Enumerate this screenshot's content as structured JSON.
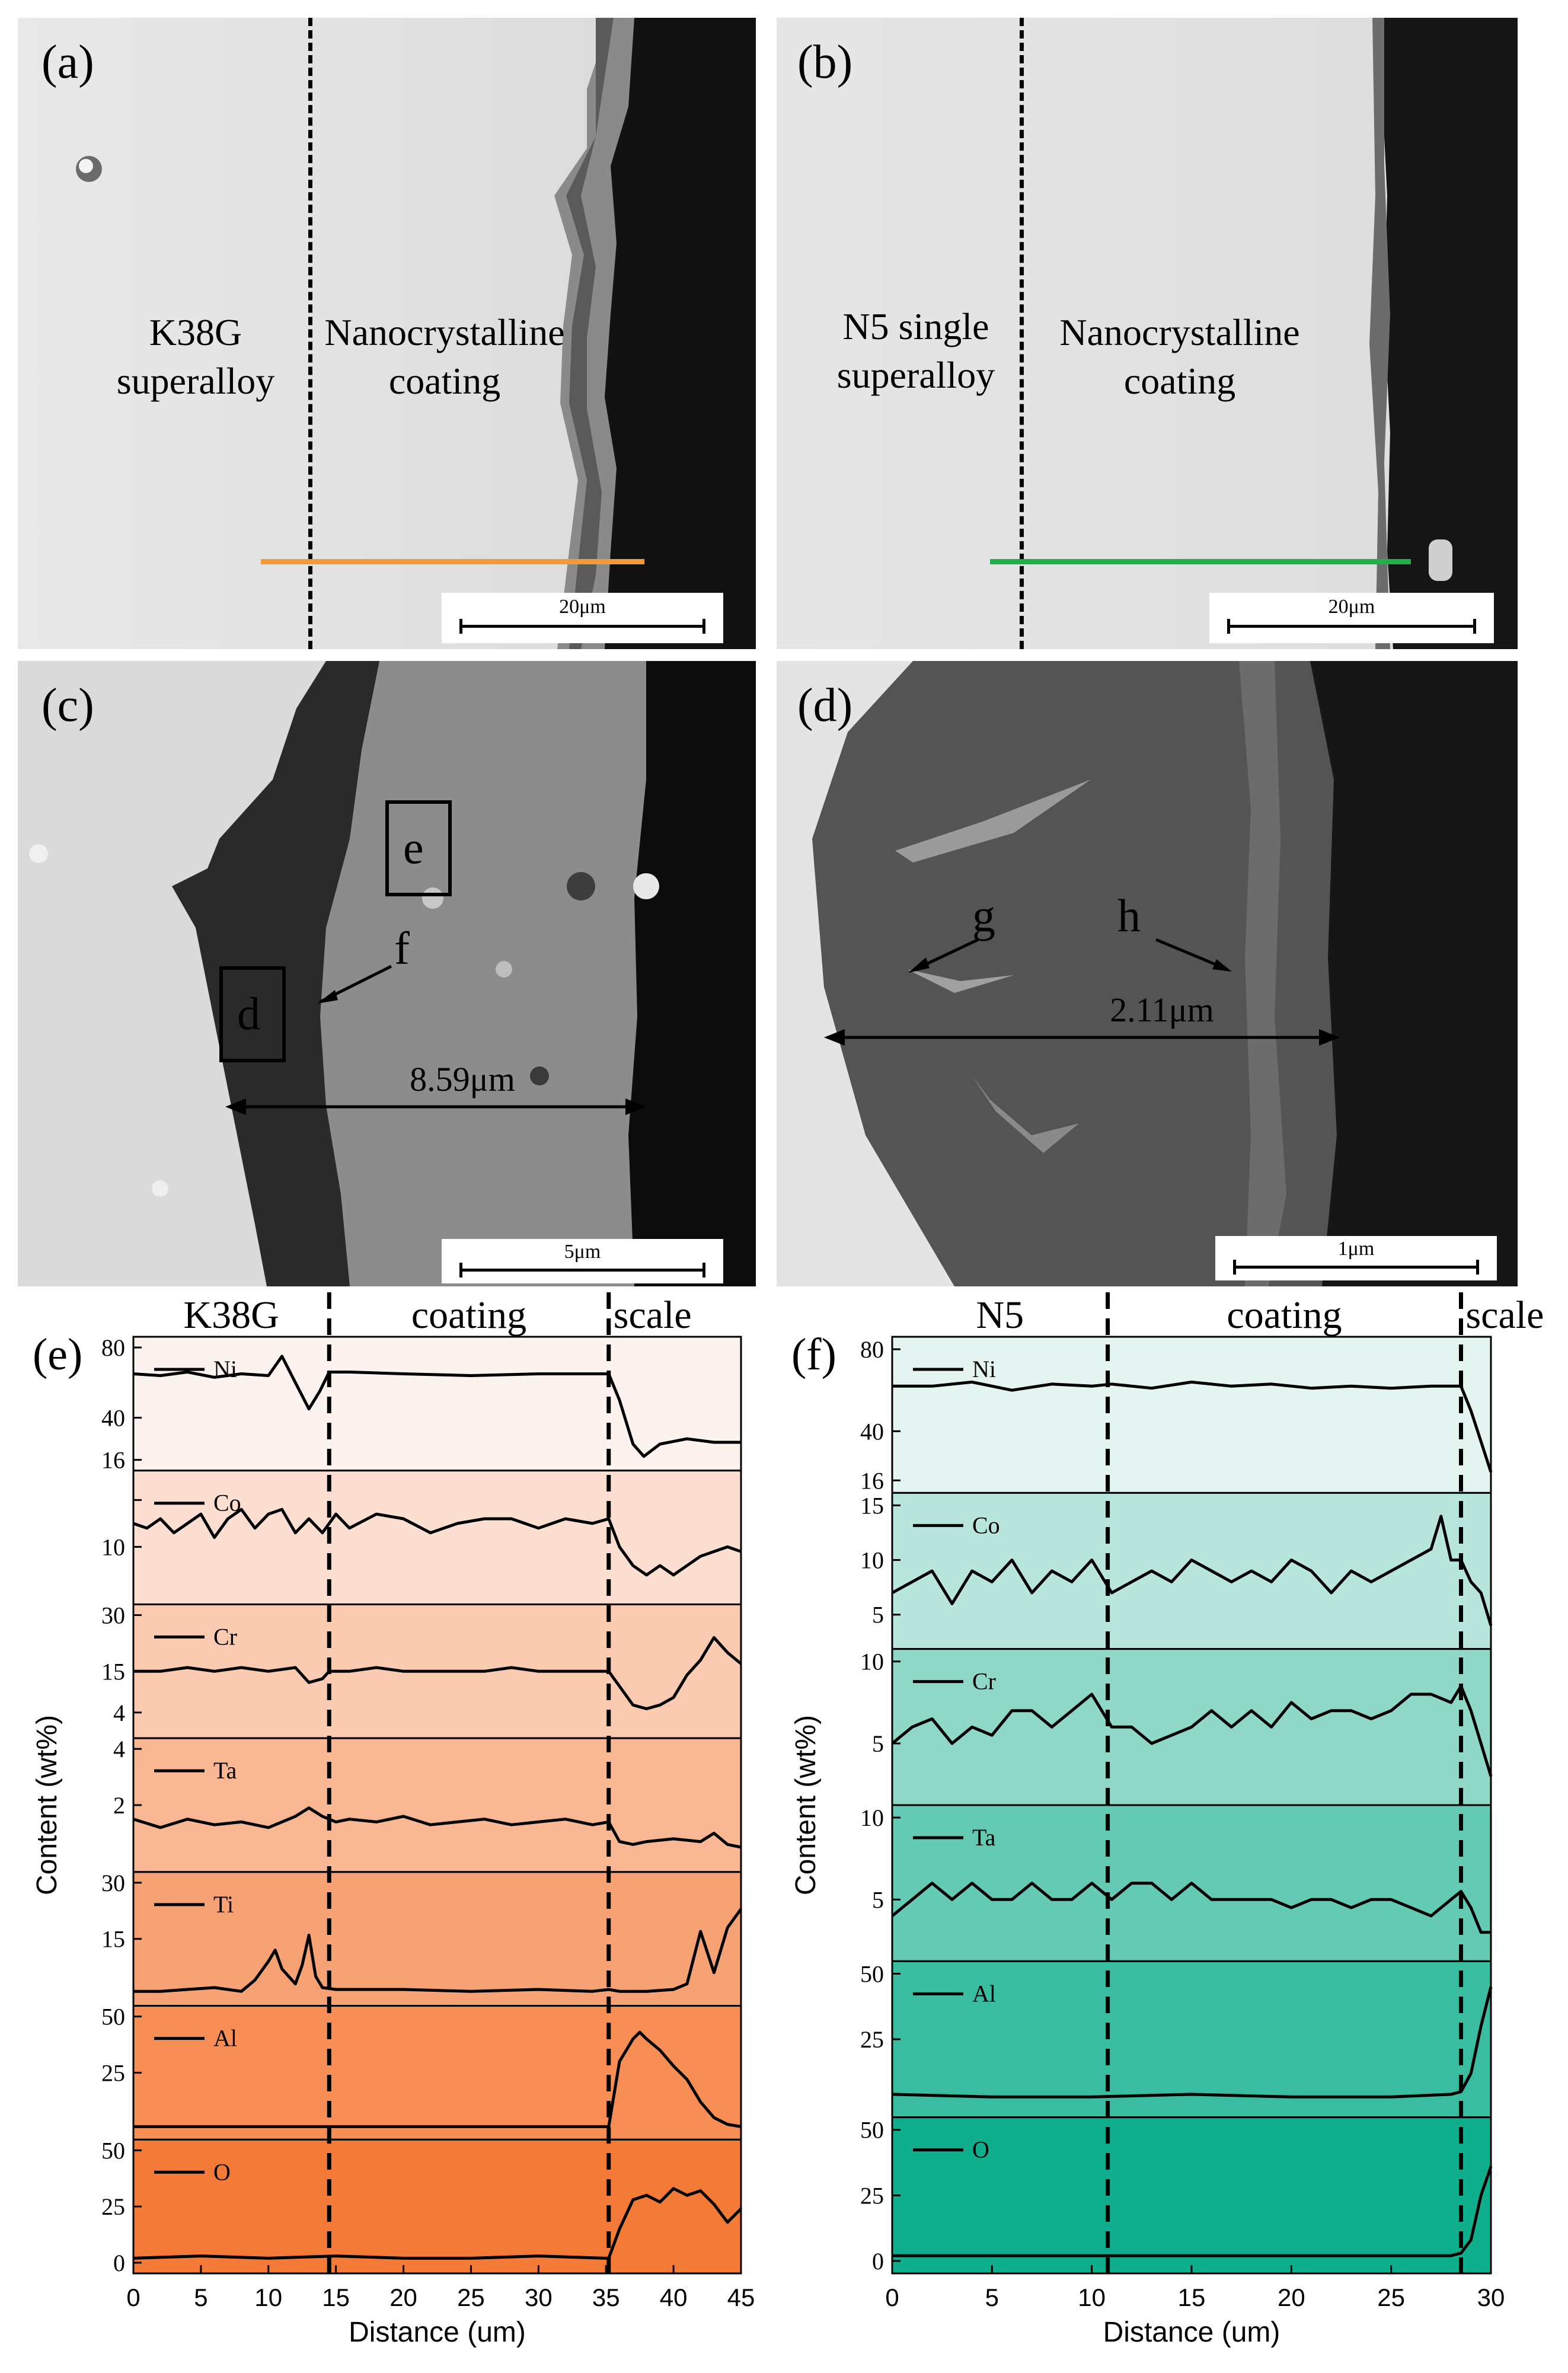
{
  "panel_a": {
    "label": "(a)",
    "left_region": [
      "K38G",
      "superalloy"
    ],
    "right_region": [
      "Nanocrystalline",
      "coating"
    ],
    "scale": "20μm"
  },
  "panel_b": {
    "label": "(b)",
    "left_region": [
      "N5 single",
      "superalloy"
    ],
    "right_region": [
      "Nanocrystalline",
      "coating"
    ],
    "scale": "20μm"
  },
  "panel_c": {
    "label": "(c)",
    "box_d": "d",
    "box_e": "e",
    "arrow_f": "f",
    "measure": "8.59μm",
    "scale": "5μm"
  },
  "panel_d": {
    "label": "(d)",
    "arrow_g": "g",
    "arrow_h": "h",
    "measure": "2.11μm",
    "scale": "1μm"
  },
  "colors": {
    "line_a": "#f39a3a",
    "line_b": "#1fae4a",
    "k38g_strip_top": "#fdf3ee",
    "k38g_strip_bottom": "#f47a38",
    "n5_strip_top": "#e4f4f0",
    "n5_strip_bottom": "#0fae8c"
  },
  "chart_data": [
    {
      "type": "line",
      "panel_label": "(e)",
      "region_labels": [
        "K38G",
        "coating",
        "scale"
      ],
      "boundaries_x": [
        14.5,
        35.2
      ],
      "xlabel": "Distance (um)",
      "ylabel": "Content (wt%)",
      "xlim": [
        0,
        45
      ],
      "xticks": [
        0,
        5,
        10,
        15,
        20,
        25,
        30,
        35,
        40,
        45
      ],
      "series": [
        {
          "name": "Ni",
          "ylim": [
            16,
            80
          ],
          "ytick_labels": [
            "80",
            "40",
            "16"
          ],
          "yticks": [
            80,
            40,
            16
          ],
          "x": [
            0,
            2,
            4,
            6,
            8,
            10,
            11,
            12,
            13,
            13.8,
            14.5,
            16,
            20,
            25,
            30,
            34,
            35.2,
            36,
            37,
            37.8,
            39,
            41,
            43,
            45
          ],
          "y": [
            65,
            64,
            66,
            63,
            65,
            64,
            75,
            60,
            45,
            55,
            66,
            66,
            65,
            64,
            65,
            65,
            65,
            50,
            25,
            18,
            25,
            28,
            26,
            26
          ]
        },
        {
          "name": "Co",
          "ylim": [
            0,
            12
          ],
          "ytick_labels": [
            "",
            "10",
            "5"
          ],
          "yticks": [
            10,
            5
          ],
          "x": [
            0,
            1,
            2,
            3,
            4,
            5,
            6,
            7,
            8,
            9,
            10,
            11,
            12,
            13,
            14,
            15,
            16,
            18,
            20,
            22,
            24,
            26,
            28,
            30,
            32,
            34,
            35.2,
            36,
            37,
            38,
            39,
            40,
            42,
            44,
            45
          ],
          "y": [
            7.5,
            7,
            8,
            6.5,
            7.5,
            8.5,
            6,
            8,
            9,
            7,
            8.5,
            9,
            6.5,
            8,
            6.5,
            8.5,
            7,
            8.5,
            8,
            6.5,
            7.5,
            8,
            8,
            7,
            8,
            7.5,
            8,
            5,
            3,
            2,
            3,
            2,
            4,
            5,
            4.5
          ]
        },
        {
          "name": "Cr",
          "ylim": [
            0,
            30
          ],
          "ytick_labels": [
            "30",
            "15",
            "4"
          ],
          "yticks": [
            30,
            15,
            4
          ],
          "x": [
            0,
            2,
            4,
            6,
            8,
            10,
            12,
            13,
            14,
            14.5,
            16,
            18,
            20,
            22,
            24,
            26,
            28,
            30,
            32,
            34,
            35.2,
            36,
            37,
            38,
            39,
            40,
            41,
            42,
            43,
            44,
            45
          ],
          "y": [
            15,
            15,
            16,
            15,
            16,
            15,
            16,
            12,
            13,
            15,
            15,
            16,
            15,
            15,
            15,
            15,
            16,
            15,
            15,
            15,
            15,
            11,
            6,
            5,
            6,
            8,
            14,
            18,
            24,
            20,
            17
          ]
        },
        {
          "name": "Ta",
          "ylim": [
            0,
            4
          ],
          "ytick_labels": [
            "4",
            "2",
            ""
          ],
          "yticks": [
            4,
            2
          ],
          "x": [
            0,
            2,
            4,
            6,
            8,
            10,
            12,
            13,
            14,
            15,
            16,
            18,
            20,
            22,
            24,
            26,
            28,
            30,
            32,
            34,
            35.2,
            36,
            37,
            38,
            40,
            42,
            43,
            44,
            45
          ],
          "y": [
            1.5,
            1.2,
            1.5,
            1.3,
            1.4,
            1.2,
            1.6,
            1.9,
            1.6,
            1.4,
            1.5,
            1.4,
            1.6,
            1.3,
            1.4,
            1.5,
            1.3,
            1.4,
            1.5,
            1.3,
            1.4,
            0.7,
            0.6,
            0.7,
            0.8,
            0.7,
            1.0,
            0.6,
            0.5
          ]
        },
        {
          "name": "Ti",
          "ylim": [
            0,
            30
          ],
          "ytick_labels": [
            "30",
            "15",
            ""
          ],
          "yticks": [
            30,
            15
          ],
          "x": [
            0,
            2,
            4,
            6,
            8,
            9,
            10,
            10.5,
            11,
            12,
            12.5,
            13,
            13.5,
            14,
            15,
            20,
            25,
            30,
            34,
            35.2,
            36,
            38,
            40,
            41,
            42,
            43,
            44,
            45
          ],
          "y": [
            1,
            1,
            1.5,
            2,
            1,
            4,
            9,
            12,
            7,
            3,
            8,
            16,
            5,
            2,
            1.5,
            1.5,
            1,
            1.5,
            1,
            1.5,
            1,
            1,
            1.5,
            3,
            17,
            6,
            18,
            23
          ]
        },
        {
          "name": "Al",
          "ylim": [
            0,
            50
          ],
          "ytick_labels": [
            "50",
            "25",
            ""
          ],
          "yticks": [
            50,
            25
          ],
          "x": [
            0,
            5,
            10,
            15,
            20,
            25,
            30,
            35,
            35.2,
            36,
            37,
            37.5,
            38,
            39,
            40,
            41,
            42,
            43,
            44,
            45
          ],
          "y": [
            1,
            1,
            1,
            1,
            1,
            1,
            1,
            1,
            1,
            30,
            40,
            43,
            40,
            35,
            28,
            22,
            12,
            5,
            2,
            1
          ]
        },
        {
          "name": "O",
          "ylim": [
            0,
            50
          ],
          "ytick_labels": [
            "50",
            "25",
            "0"
          ],
          "yticks": [
            50,
            25,
            0
          ],
          "x": [
            0,
            5,
            10,
            15,
            20,
            25,
            30,
            35,
            35.2,
            36,
            37,
            38,
            39,
            40,
            41,
            42,
            43,
            44,
            45
          ],
          "y": [
            2,
            3,
            2,
            3,
            2,
            2,
            3,
            2,
            2,
            15,
            28,
            30,
            27,
            33,
            30,
            32,
            26,
            18,
            24
          ]
        }
      ]
    },
    {
      "type": "line",
      "panel_label": "(f)",
      "region_labels": [
        "N5",
        "coating",
        "scale"
      ],
      "boundaries_x": [
        10.8,
        28.5
      ],
      "xlabel": "Distance (um)",
      "ylabel": "Content (wt%)",
      "xlim": [
        0,
        30
      ],
      "xticks": [
        0,
        5,
        10,
        15,
        20,
        25,
        30
      ],
      "series": [
        {
          "name": "Ni",
          "ylim": [
            16,
            80
          ],
          "ytick_labels": [
            "80",
            "40",
            "16"
          ],
          "yticks": [
            80,
            40,
            16
          ],
          "x": [
            0,
            2,
            4,
            6,
            8,
            10,
            11,
            13,
            15,
            17,
            19,
            21,
            23,
            25,
            27,
            28.5,
            29,
            29.5,
            30
          ],
          "y": [
            62,
            62,
            64,
            60,
            63,
            62,
            63,
            61,
            64,
            62,
            63,
            61,
            62,
            61,
            62,
            62,
            50,
            35,
            20
          ]
        },
        {
          "name": "Co",
          "ylim": [
            3,
            15
          ],
          "ytick_labels": [
            "15",
            "10",
            "5"
          ],
          "yticks": [
            15,
            10,
            5
          ],
          "x": [
            0,
            1,
            2,
            3,
            4,
            5,
            6,
            7,
            8,
            9,
            10,
            11,
            12,
            13,
            14,
            15,
            16,
            17,
            18,
            19,
            20,
            21,
            22,
            23,
            24,
            25,
            26,
            27,
            27.5,
            28,
            28.5,
            29,
            29.5,
            30
          ],
          "y": [
            7,
            8,
            9,
            6,
            9,
            8,
            10,
            7,
            9,
            8,
            10,
            7,
            8,
            9,
            8,
            10,
            9,
            8,
            9,
            8,
            10,
            9,
            7,
            9,
            8,
            9,
            10,
            11,
            14,
            10,
            10,
            8,
            7,
            4
          ]
        },
        {
          "name": "Cr",
          "ylim": [
            2,
            10
          ],
          "ytick_labels": [
            "10",
            "5",
            ""
          ],
          "yticks": [
            10,
            5
          ],
          "x": [
            0,
            1,
            2,
            3,
            4,
            5,
            6,
            7,
            8,
            9,
            10,
            11,
            12,
            13,
            14,
            15,
            16,
            17,
            18,
            19,
            20,
            21,
            22,
            23,
            24,
            25,
            26,
            27,
            28,
            28.5,
            29,
            29.5,
            30
          ],
          "y": [
            5,
            6,
            6.5,
            5,
            6,
            5.5,
            7,
            7,
            6,
            7,
            8,
            6,
            6,
            5,
            5.5,
            6,
            7,
            6,
            7,
            6,
            7.5,
            6.5,
            7,
            7,
            6.5,
            7,
            8,
            8,
            7.5,
            8.5,
            7,
            5,
            3
          ]
        },
        {
          "name": "Ta",
          "ylim": [
            2,
            10
          ],
          "ytick_labels": [
            "10",
            "5",
            ""
          ],
          "yticks": [
            10,
            5
          ],
          "x": [
            0,
            1,
            2,
            3,
            4,
            5,
            6,
            7,
            8,
            9,
            10,
            11,
            12,
            13,
            14,
            15,
            16,
            17,
            18,
            19,
            20,
            21,
            22,
            23,
            24,
            25,
            26,
            27,
            28,
            28.5,
            29,
            29.5,
            30
          ],
          "y": [
            4,
            5,
            6,
            5,
            6,
            5,
            5,
            6,
            5,
            5,
            6,
            5,
            6,
            6,
            5,
            6,
            5,
            5,
            5,
            5,
            4.5,
            5,
            5,
            4.5,
            5,
            5,
            4.5,
            4,
            5,
            5.5,
            4.5,
            3,
            3
          ]
        },
        {
          "name": "Al",
          "ylim": [
            0,
            50
          ],
          "ytick_labels": [
            "50",
            "25",
            ""
          ],
          "yticks": [
            50,
            25
          ],
          "x": [
            0,
            5,
            10,
            15,
            20,
            25,
            28,
            28.5,
            29,
            29.5,
            30
          ],
          "y": [
            4,
            3,
            3,
            4,
            3,
            3,
            4,
            5,
            12,
            30,
            45
          ]
        },
        {
          "name": "O",
          "ylim": [
            0,
            50
          ],
          "ytick_labels": [
            "50",
            "25",
            "0"
          ],
          "yticks": [
            50,
            25,
            0
          ],
          "x": [
            0,
            5,
            10,
            15,
            20,
            25,
            28,
            28.5,
            29,
            29.5,
            30
          ],
          "y": [
            2,
            2,
            2,
            2,
            2,
            2,
            2,
            3,
            8,
            25,
            36
          ]
        }
      ]
    }
  ]
}
